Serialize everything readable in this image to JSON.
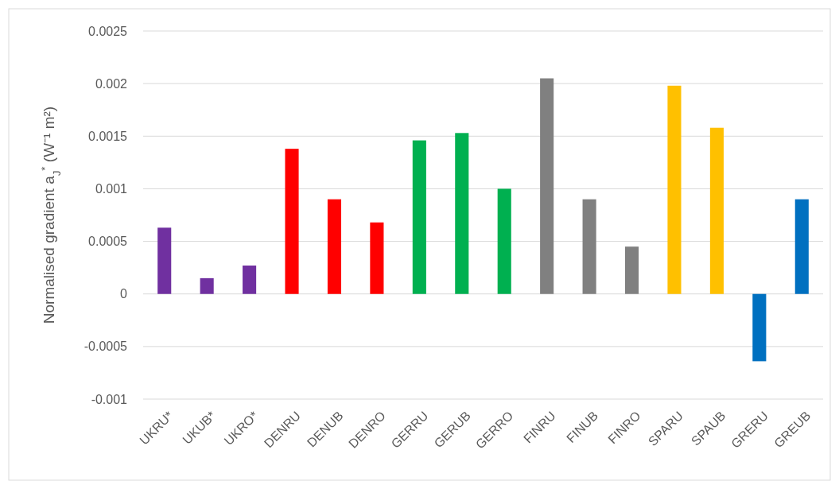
{
  "chart_data": {
    "type": "bar",
    "ylabel": "Normalised gradient a$_{J}$$^{*}$ (W⁻¹ m²)",
    "categories": [
      "UKRU*",
      "UKUB*",
      "UKRO*",
      "DENRU",
      "DENUB",
      "DENRO",
      "GERRU",
      "GERUB",
      "GERRO",
      "FINRU",
      "FINUB",
      "FINRO",
      "SPARU",
      "SPAUB",
      "GRERU",
      "GREUB"
    ],
    "values": [
      0.00063,
      0.00015,
      0.00027,
      0.00138,
      0.0009,
      0.00068,
      0.00146,
      0.00153,
      0.001,
      0.00205,
      0.0009,
      0.00045,
      0.00198,
      0.00158,
      -0.00064,
      0.0009
    ],
    "colors": [
      "#7030a0",
      "#7030a0",
      "#7030a0",
      "#ff0000",
      "#ff0000",
      "#ff0000",
      "#00b050",
      "#00b050",
      "#00b050",
      "#808080",
      "#808080",
      "#808080",
      "#ffc000",
      "#ffc000",
      "#0070c0",
      "#0070c0"
    ],
    "ylim": [
      -0.001,
      0.0025
    ],
    "yticks": [
      -0.001,
      -0.0005,
      0,
      0.0005,
      0.001,
      0.0015,
      0.002,
      0.0025
    ],
    "grid": "y"
  }
}
